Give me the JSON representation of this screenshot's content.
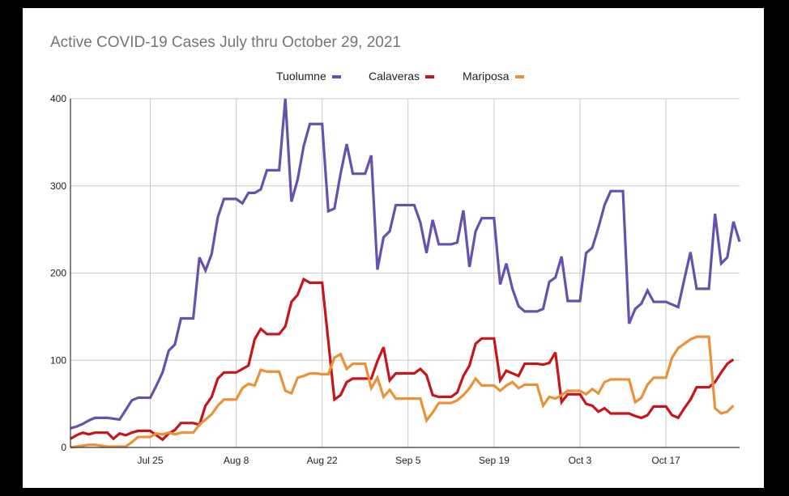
{
  "chart_data": {
    "type": "line",
    "title": "Active COVID-19 Cases July thru October 29, 2021",
    "xlabel": "",
    "ylabel": "",
    "ylim": [
      0,
      400
    ],
    "yticks": [
      "0",
      "100",
      "200",
      "300",
      "400"
    ],
    "ytick_values": [
      0,
      100,
      200,
      300,
      400
    ],
    "xtick_labels": [
      "Jul 25",
      "Aug 8",
      "Aug 22",
      "Sep 5",
      "Sep 19",
      "Oct 3",
      "Oct 17"
    ],
    "xtick_index": [
      13,
      27,
      41,
      55,
      69,
      83,
      97
    ],
    "grid": true,
    "legend_position": "top",
    "x": [
      "Jul 12",
      "Jul 13",
      "Jul 14",
      "Jul 15",
      "Jul 16",
      "Jul 17",
      "Jul 18",
      "Jul 19",
      "Jul 20",
      "Jul 21",
      "Jul 22",
      "Jul 23",
      "Jul 24",
      "Jul 25",
      "Jul 26",
      "Jul 27",
      "Jul 28",
      "Jul 29",
      "Jul 30",
      "Jul 31",
      "Aug 1",
      "Aug 2",
      "Aug 3",
      "Aug 4",
      "Aug 5",
      "Aug 6",
      "Aug 7",
      "Aug 8",
      "Aug 9",
      "Aug 10",
      "Aug 11",
      "Aug 12",
      "Aug 13",
      "Aug 14",
      "Aug 15",
      "Aug 16",
      "Aug 17",
      "Aug 18",
      "Aug 19",
      "Aug 20",
      "Aug 21",
      "Aug 22",
      "Aug 23",
      "Aug 24",
      "Aug 25",
      "Aug 26",
      "Aug 27",
      "Aug 28",
      "Aug 29",
      "Aug 30",
      "Aug 31",
      "Sep 1",
      "Sep 2",
      "Sep 3",
      "Sep 4",
      "Sep 5",
      "Sep 6",
      "Sep 7",
      "Sep 8",
      "Sep 9",
      "Sep 10",
      "Sep 11",
      "Sep 12",
      "Sep 13",
      "Sep 14",
      "Sep 15",
      "Sep 16",
      "Sep 17",
      "Sep 18",
      "Sep 19",
      "Sep 20",
      "Sep 21",
      "Sep 22",
      "Sep 23",
      "Sep 24",
      "Sep 25",
      "Sep 26",
      "Sep 27",
      "Sep 28",
      "Sep 29",
      "Sep 30",
      "Oct 1",
      "Oct 2",
      "Oct 3",
      "Oct 4",
      "Oct 5",
      "Oct 6",
      "Oct 7",
      "Oct 8",
      "Oct 9",
      "Oct 10",
      "Oct 11",
      "Oct 12",
      "Oct 13",
      "Oct 14",
      "Oct 15",
      "Oct 16",
      "Oct 17",
      "Oct 18",
      "Oct 19",
      "Oct 20",
      "Oct 21",
      "Oct 22",
      "Oct 23",
      "Oct 24",
      "Oct 25",
      "Oct 26",
      "Oct 27",
      "Oct 28",
      "Oct 29"
    ],
    "series": [
      {
        "name": "Tuolumne",
        "color": "#6751b0",
        "values": [
          22,
          24,
          27,
          31,
          34,
          34,
          34,
          33,
          32,
          43,
          54,
          57,
          57,
          57,
          71,
          86,
          111,
          118,
          148,
          148,
          148,
          218,
          203,
          222,
          264,
          285,
          285,
          285,
          280,
          292,
          292,
          296,
          318,
          318,
          318,
          400,
          282,
          307,
          346,
          371,
          371,
          371,
          271,
          274,
          314,
          348,
          314,
          314,
          314,
          335,
          204,
          241,
          248,
          278,
          278,
          278,
          278,
          258,
          223,
          261,
          233,
          233,
          233,
          235,
          272,
          207,
          248,
          263,
          263,
          263,
          187,
          211,
          182,
          162,
          156,
          156,
          156,
          159,
          190,
          195,
          219,
          168,
          168,
          168,
          223,
          229,
          252,
          278,
          294,
          294,
          294,
          142,
          159,
          165,
          180,
          167,
          167,
          167,
          164,
          161,
          193,
          224,
          182,
          182,
          182,
          268,
          211,
          218,
          259,
          236
        ]
      },
      {
        "name": "Calaveras",
        "color": "#c5161b",
        "values": [
          10,
          14,
          17,
          15,
          17,
          17,
          17,
          10,
          16,
          14,
          17,
          19,
          19,
          19,
          14,
          9,
          16,
          20,
          28,
          28,
          28,
          26,
          48,
          58,
          79,
          86,
          86,
          86,
          90,
          94,
          124,
          136,
          130,
          130,
          130,
          139,
          167,
          175,
          193,
          189,
          189,
          189,
          122,
          55,
          60,
          75,
          79,
          79,
          79,
          79,
          99,
          115,
          77,
          85,
          85,
          85,
          85,
          90,
          83,
          60,
          58,
          58,
          58,
          63,
          82,
          94,
          119,
          125,
          125,
          125,
          77,
          88,
          85,
          82,
          96,
          96,
          96,
          95,
          97,
          109,
          52,
          61,
          61,
          61,
          50,
          48,
          41,
          45,
          39,
          39,
          39,
          39,
          36,
          34,
          37,
          47,
          47,
          47,
          37,
          34,
          45,
          55,
          69,
          69,
          69,
          75,
          86,
          96,
          101,
          null
        ]
      },
      {
        "name": "Mariposa",
        "color": "#eb9138",
        "values": [
          0,
          1,
          2,
          3,
          3,
          2,
          1,
          1,
          1,
          1,
          6,
          12,
          12,
          12,
          16,
          15,
          17,
          15,
          17,
          17,
          17,
          26,
          32,
          38,
          48,
          55,
          55,
          55,
          68,
          73,
          71,
          89,
          87,
          87,
          87,
          65,
          62,
          80,
          82,
          85,
          85,
          84,
          84,
          103,
          107,
          90,
          96,
          96,
          96,
          68,
          80,
          58,
          66,
          56,
          56,
          56,
          56,
          56,
          31,
          40,
          51,
          51,
          51,
          54,
          60,
          68,
          79,
          71,
          71,
          71,
          65,
          71,
          75,
          68,
          72,
          72,
          72,
          48,
          58,
          56,
          60,
          65,
          65,
          65,
          61,
          67,
          62,
          75,
          78,
          78,
          78,
          78,
          52,
          57,
          72,
          80,
          80,
          80,
          103,
          114,
          119,
          124,
          127,
          127,
          127,
          45,
          39,
          41,
          48,
          null
        ]
      }
    ]
  }
}
